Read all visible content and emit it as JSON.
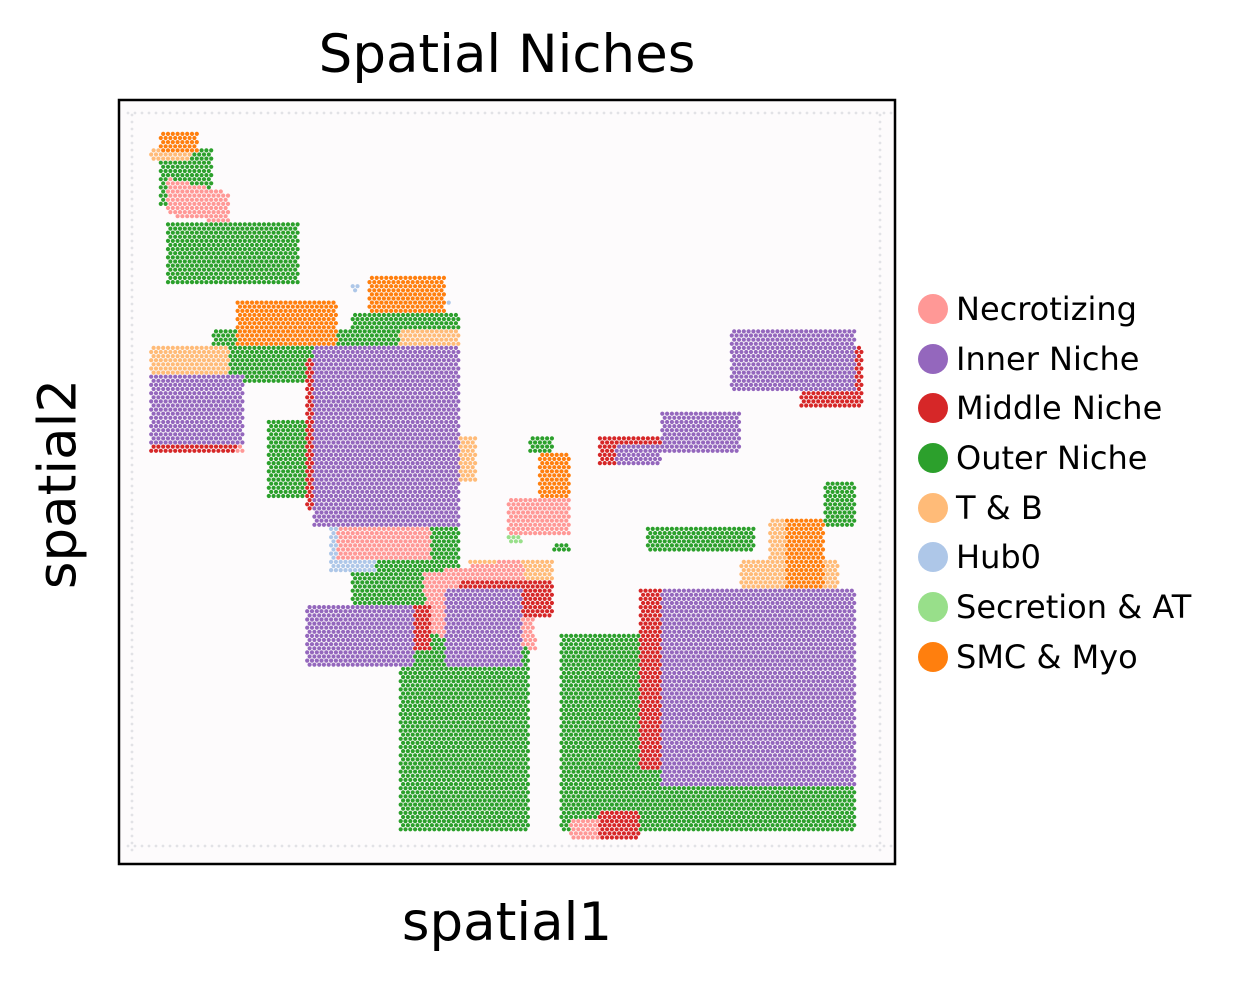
{
  "chart_data": {
    "type": "scatter",
    "title": "Spatial Niches",
    "xlabel": "spatial1",
    "ylabel": "spatial2",
    "xticks": [],
    "yticks": [],
    "grid": false,
    "legend_position": "right",
    "xlim": [
      0,
      100
    ],
    "ylim": [
      0,
      100
    ],
    "y_axis_inverted": true,
    "point_style": "hexagonal spot grid",
    "series": [
      {
        "name": "Necrotizing",
        "color": "#ff9896",
        "regions": [
          [
            [
              6,
              10
            ],
            [
              14,
              12
            ],
            [
              14,
              16
            ],
            [
              6,
              15
            ]
          ],
          [
            [
              28,
              48
            ],
            [
              40,
              48
            ],
            [
              40,
              60
            ],
            [
              28,
              60
            ]
          ],
          [
            [
              39,
              62
            ],
            [
              52,
              60
            ],
            [
              54,
              72
            ],
            [
              40,
              70
            ]
          ],
          [
            [
              69,
              76
            ],
            [
              80,
              76
            ],
            [
              80,
              84
            ],
            [
              69,
              84
            ]
          ],
          [
            [
              58,
              94
            ],
            [
              67,
              94
            ],
            [
              67,
              97
            ],
            [
              58,
              97
            ]
          ],
          [
            [
              11,
              42
            ],
            [
              16,
              42
            ],
            [
              16,
              46
            ],
            [
              11,
              46
            ]
          ],
          [
            [
              50,
              52
            ],
            [
              58,
              52
            ],
            [
              58,
              57
            ],
            [
              50,
              57
            ]
          ]
        ]
      },
      {
        "name": "Inner Niche",
        "color": "#9467bd",
        "regions": [
          [
            [
              4,
              36
            ],
            [
              16,
              36
            ],
            [
              16,
              45
            ],
            [
              4,
              45
            ]
          ],
          [
            [
              25,
              32
            ],
            [
              44,
              32
            ],
            [
              44,
              56
            ],
            [
              25,
              56
            ]
          ],
          [
            [
              24,
              66
            ],
            [
              38,
              66
            ],
            [
              38,
              74
            ],
            [
              24,
              74
            ]
          ],
          [
            [
              42,
              64
            ],
            [
              52,
              64
            ],
            [
              52,
              74
            ],
            [
              42,
              74
            ]
          ],
          [
            [
              70,
              64
            ],
            [
              95,
              64
            ],
            [
              95,
              90
            ],
            [
              70,
              90
            ]
          ],
          [
            [
              79,
              30
            ],
            [
              95,
              30
            ],
            [
              95,
              38
            ],
            [
              79,
              38
            ]
          ],
          [
            [
              70,
              41
            ],
            [
              80,
              41
            ],
            [
              80,
              46
            ],
            [
              70,
              46
            ]
          ],
          [
            [
              64,
              45
            ],
            [
              70,
              45
            ],
            [
              70,
              48
            ],
            [
              64,
              48
            ]
          ],
          [
            [
              47,
              66
            ],
            [
              52,
              66
            ],
            [
              52,
              70
            ],
            [
              47,
              70
            ]
          ]
        ]
      },
      {
        "name": "Middle Niche",
        "color": "#d62728",
        "regions": [
          [
            [
              4,
              38
            ],
            [
              15,
              38
            ],
            [
              15,
              46
            ],
            [
              4,
              46
            ]
          ],
          [
            [
              24,
              34
            ],
            [
              36,
              34
            ],
            [
              36,
              54
            ],
            [
              24,
              54
            ]
          ],
          [
            [
              28,
              66
            ],
            [
              40,
              66
            ],
            [
              40,
              72
            ],
            [
              28,
              72
            ]
          ],
          [
            [
              67,
              64
            ],
            [
              95,
              64
            ],
            [
              95,
              88
            ],
            [
              67,
              88
            ]
          ],
          [
            [
              88,
              32
            ],
            [
              96,
              32
            ],
            [
              96,
              40
            ],
            [
              88,
              40
            ]
          ],
          [
            [
              62,
              44
            ],
            [
              70,
              44
            ],
            [
              70,
              48
            ],
            [
              62,
              48
            ]
          ],
          [
            [
              44,
              63
            ],
            [
              56,
              63
            ],
            [
              56,
              68
            ],
            [
              44,
              68
            ]
          ],
          [
            [
              62,
              93
            ],
            [
              67,
              93
            ],
            [
              67,
              97
            ],
            [
              62,
              97
            ]
          ]
        ]
      },
      {
        "name": "Outer Niche",
        "color": "#2ca02c",
        "regions": [
          [
            [
              5,
              6
            ],
            [
              12,
              6
            ],
            [
              12,
              14
            ],
            [
              5,
              14
            ]
          ],
          [
            [
              6,
              16
            ],
            [
              23,
              16
            ],
            [
              23,
              24
            ],
            [
              6,
              24
            ]
          ],
          [
            [
              12,
              30
            ],
            [
              30,
              30
            ],
            [
              30,
              37
            ],
            [
              12,
              37
            ]
          ],
          [
            [
              30,
              28
            ],
            [
              44,
              28
            ],
            [
              44,
              32
            ],
            [
              30,
              32
            ]
          ],
          [
            [
              19,
              42
            ],
            [
              24,
              42
            ],
            [
              24,
              52
            ],
            [
              19,
              52
            ]
          ],
          [
            [
              30,
              50
            ],
            [
              44,
              50
            ],
            [
              44,
              66
            ],
            [
              30,
              66
            ]
          ],
          [
            [
              36,
              68
            ],
            [
              53,
              68
            ],
            [
              53,
              96
            ],
            [
              36,
              96
            ]
          ],
          [
            [
              57,
              70
            ],
            [
              79,
              70
            ],
            [
              79,
              96
            ],
            [
              57,
              96
            ]
          ],
          [
            [
              68,
              56
            ],
            [
              82,
              56
            ],
            [
              82,
              59
            ],
            [
              68,
              59
            ]
          ],
          [
            [
              76,
              70
            ],
            [
              95,
              70
            ],
            [
              95,
              96
            ],
            [
              76,
              96
            ]
          ],
          [
            [
              91,
              50
            ],
            [
              95,
              50
            ],
            [
              95,
              56
            ],
            [
              91,
              56
            ]
          ],
          [
            [
              56,
              58
            ],
            [
              58,
              58
            ],
            [
              58,
              59
            ],
            [
              56,
              59
            ]
          ],
          [
            [
              53,
              44
            ],
            [
              56,
              44
            ],
            [
              56,
              46
            ],
            [
              53,
              46
            ]
          ]
        ]
      },
      {
        "name": "T & B",
        "color": "#ffbb78",
        "regions": [
          [
            [
              4,
              6
            ],
            [
              9,
              6
            ],
            [
              9,
              8
            ],
            [
              4,
              8
            ]
          ],
          [
            [
              4,
              32
            ],
            [
              14,
              32
            ],
            [
              14,
              37
            ],
            [
              4,
              37
            ]
          ],
          [
            [
              11,
              42
            ],
            [
              16,
              42
            ],
            [
              16,
              46
            ],
            [
              11,
              46
            ]
          ],
          [
            [
              36,
              30
            ],
            [
              44,
              30
            ],
            [
              44,
              37
            ],
            [
              36,
              37
            ]
          ],
          [
            [
              38,
              44
            ],
            [
              46,
              44
            ],
            [
              46,
              50
            ],
            [
              38,
              50
            ]
          ],
          [
            [
              45,
              60
            ],
            [
              56,
              60
            ],
            [
              56,
              64
            ],
            [
              45,
              64
            ]
          ],
          [
            [
              80,
              60
            ],
            [
              93,
              60
            ],
            [
              93,
              68
            ],
            [
              80,
              68
            ]
          ],
          [
            [
              94,
              32
            ],
            [
              95,
              32
            ],
            [
              95,
              36
            ],
            [
              94,
              36
            ]
          ],
          [
            [
              84,
              55
            ],
            [
              88,
              55
            ],
            [
              88,
              60
            ],
            [
              84,
              60
            ]
          ]
        ]
      },
      {
        "name": "Hub0",
        "color": "#aec7e8",
        "regions": [
          [
            [
              27,
              56
            ],
            [
              33,
              56
            ],
            [
              33,
              62
            ],
            [
              27,
              62
            ]
          ],
          [
            [
              34,
              32
            ],
            [
              36,
              32
            ],
            [
              36,
              34
            ],
            [
              34,
              34
            ]
          ],
          [
            [
              30,
              24
            ],
            [
              31,
              24
            ],
            [
              31,
              25
            ],
            [
              30,
              25
            ]
          ],
          [
            [
              42,
              26
            ],
            [
              43,
              26
            ],
            [
              43,
              27
            ],
            [
              42,
              27
            ]
          ]
        ]
      },
      {
        "name": "Secretion & AT",
        "color": "#98df8a",
        "regions": [
          [
            [
              50,
              56
            ],
            [
              52,
              56
            ],
            [
              52,
              58
            ],
            [
              50,
              58
            ]
          ]
        ]
      },
      {
        "name": "SMC & Myo",
        "color": "#ff7f0e",
        "regions": [
          [
            [
              5,
              4
            ],
            [
              10,
              4
            ],
            [
              10,
              7
            ],
            [
              5,
              7
            ]
          ],
          [
            [
              15,
              26
            ],
            [
              28,
              26
            ],
            [
              28,
              32
            ],
            [
              15,
              32
            ]
          ],
          [
            [
              32,
              23
            ],
            [
              42,
              23
            ],
            [
              42,
              28
            ],
            [
              32,
              28
            ]
          ],
          [
            [
              54,
              46
            ],
            [
              58,
              46
            ],
            [
              58,
              56
            ],
            [
              54,
              56
            ]
          ],
          [
            [
              75,
              70
            ],
            [
              88,
              70
            ],
            [
              88,
              76
            ],
            [
              75,
              76
            ]
          ],
          [
            [
              86,
              55
            ],
            [
              91,
              55
            ],
            [
              91,
              64
            ],
            [
              86,
              64
            ]
          ],
          [
            [
              53,
              55
            ],
            [
              57,
              55
            ],
            [
              57,
              57
            ],
            [
              53,
              57
            ]
          ]
        ]
      }
    ]
  }
}
